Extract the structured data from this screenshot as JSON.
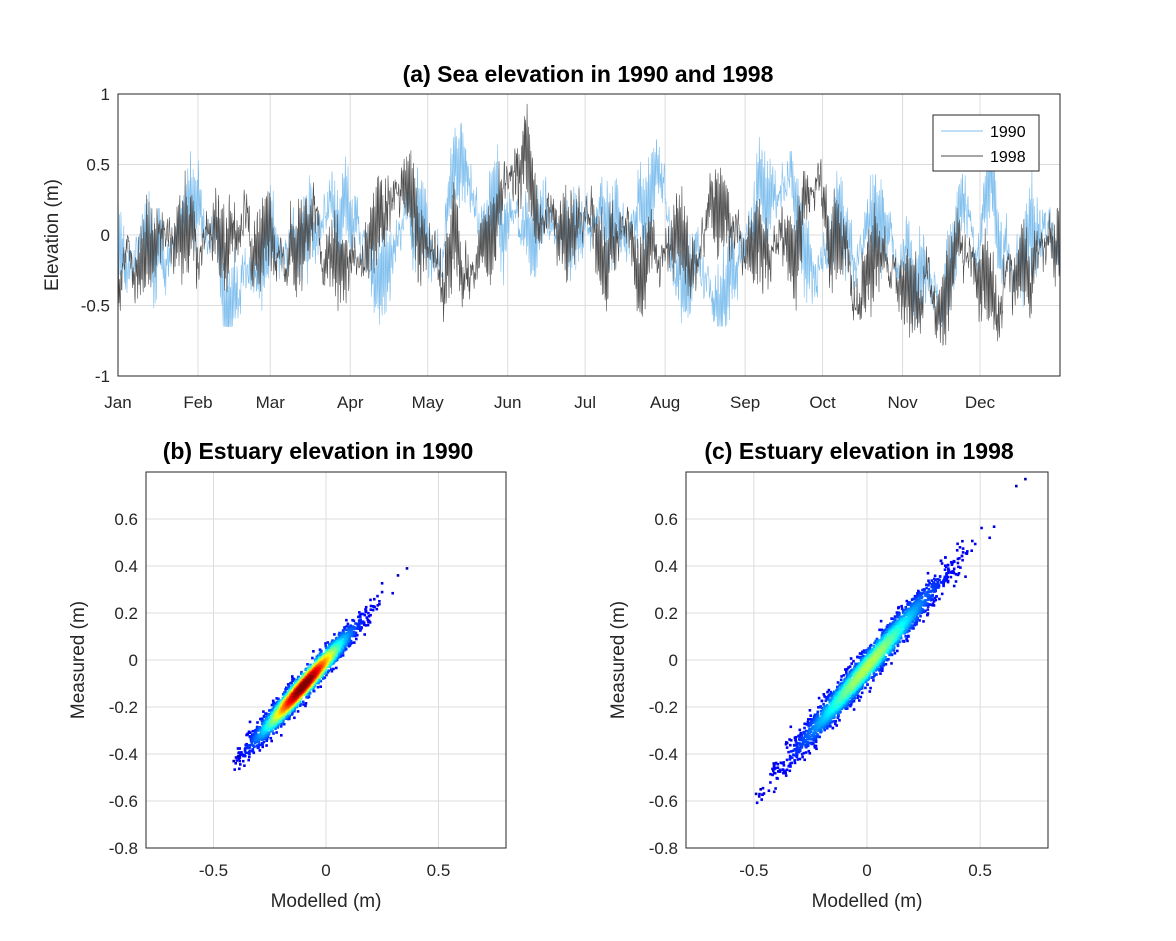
{
  "chart_data": [
    {
      "type": "line",
      "title": "(a) Sea elevation in  1990 and 1998",
      "ylabel": "Elevation (m)",
      "xlabel": "",
      "x_tick_labels": [
        "Jan",
        "Feb",
        "Mar",
        "Apr",
        "May",
        "Jun",
        "Jul",
        "Aug",
        "Sep",
        "Oct",
        "Nov",
        "Dec"
      ],
      "x_ticks_day_of_year": [
        1,
        32,
        60,
        91,
        121,
        152,
        182,
        213,
        244,
        274,
        305,
        335
      ],
      "xlim_day_of_year": [
        1,
        366
      ],
      "ylim": [
        -1,
        1
      ],
      "y_ticks": [
        -1,
        -0.5,
        0,
        0.5,
        1
      ],
      "y_tick_labels": [
        "-1",
        "-0.5",
        "0",
        "0.5",
        "1"
      ],
      "grid": true,
      "legend_position": "top-right",
      "series": [
        {
          "name": "1990",
          "color": "#7fbfee",
          "monthly_mean": [
            -0.12,
            -0.08,
            -0.05,
            -0.02,
            0.0,
            0.05,
            0.0,
            -0.02,
            -0.1,
            -0.08,
            -0.05,
            -0.08
          ],
          "approx_min": -0.65,
          "approx_max": 0.85
        },
        {
          "name": "1998",
          "color": "#4d4d4d",
          "monthly_mean": [
            -0.2,
            -0.25,
            -0.15,
            -0.08,
            0.02,
            0.08,
            0.05,
            0.02,
            0.0,
            -0.05,
            -0.1,
            -0.12
          ],
          "approx_min": -0.78,
          "approx_max": 0.93
        }
      ]
    },
    {
      "type": "scatter",
      "subtype": "density-colored",
      "title": "(b) Estuary elevation in 1990",
      "xlabel": "Modelled (m)",
      "ylabel": "Measured (m)",
      "xlim": [
        -0.8,
        0.8
      ],
      "ylim": [
        -0.8,
        0.8
      ],
      "x_ticks": [
        -0.5,
        0,
        0.5
      ],
      "x_tick_labels": [
        "-0.5",
        "0",
        "0.5"
      ],
      "y_ticks": [
        -0.8,
        -0.6,
        -0.4,
        -0.2,
        0,
        0.2,
        0.4,
        0.6
      ],
      "y_tick_labels": [
        "-0.8",
        "-0.6",
        "-0.4",
        "-0.2",
        "0",
        "0.2",
        "0.4",
        "0.6"
      ],
      "grid": true,
      "colormap": "jet",
      "x_range": [
        -0.41,
        0.36
      ],
      "y_range": [
        -0.43,
        0.39
      ],
      "density_center": [
        -0.1,
        -0.11
      ]
    },
    {
      "type": "scatter",
      "subtype": "density-colored",
      "title": "(c) Estuary elevation in 1998",
      "xlabel": "Modelled (m)",
      "ylabel": "Measured (m)",
      "xlim": [
        -0.8,
        0.8
      ],
      "ylim": [
        -0.8,
        0.8
      ],
      "x_ticks": [
        -0.5,
        0,
        0.5
      ],
      "x_tick_labels": [
        "-0.5",
        "0",
        "0.5"
      ],
      "y_ticks": [
        -0.8,
        -0.6,
        -0.4,
        -0.2,
        0,
        0.2,
        0.4,
        0.6
      ],
      "y_tick_labels": [
        "-0.8",
        "-0.6",
        "-0.4",
        "-0.2",
        "0",
        "0.2",
        "0.4",
        "0.6"
      ],
      "grid": true,
      "colormap": "jet",
      "x_range": [
        -0.49,
        0.7
      ],
      "y_range": [
        -0.57,
        0.77
      ],
      "density_center": [
        0.0,
        -0.03
      ]
    }
  ]
}
